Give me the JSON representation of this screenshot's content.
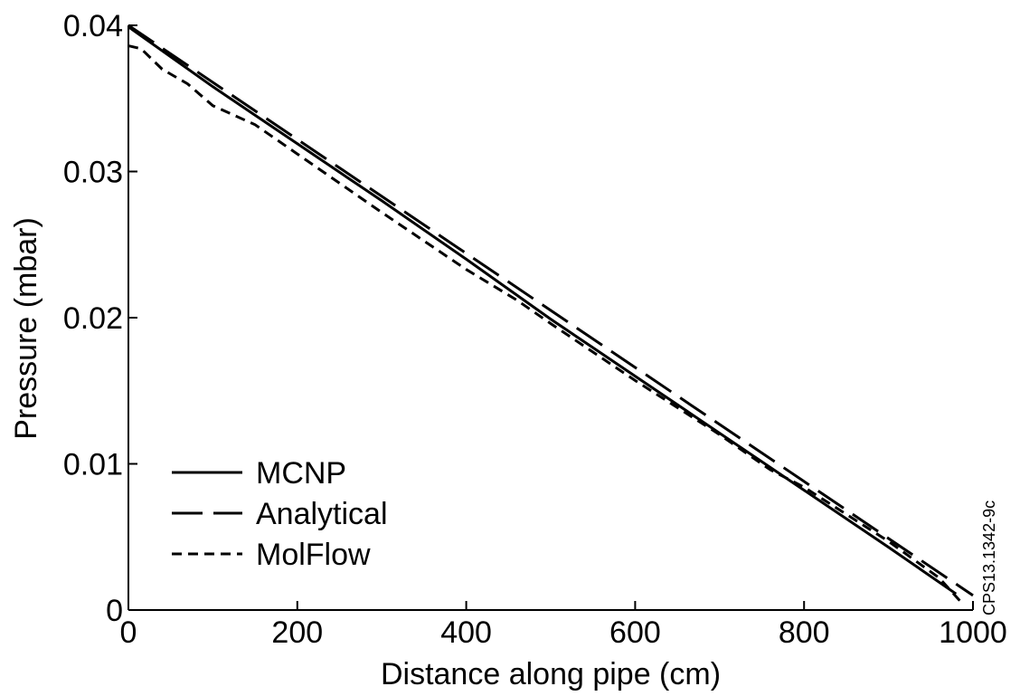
{
  "chart_data": {
    "type": "line",
    "xlabel": "Distance along pipe (cm)",
    "ylabel": "Pressure (mbar)",
    "xlim": [
      0,
      1000
    ],
    "ylim": [
      0,
      0.04
    ],
    "x_ticks": [
      0,
      200,
      400,
      600,
      800,
      1000
    ],
    "x_tick_labels": [
      "0",
      "200",
      "400",
      "600",
      "800",
      "1000"
    ],
    "y_ticks": [
      0,
      0.01,
      0.02,
      0.03,
      0.04
    ],
    "y_tick_labels": [
      "0",
      "0.01",
      "0.02",
      "0.03",
      "0.04"
    ],
    "grid": false,
    "legend_position": "bottom-left",
    "series": [
      {
        "name": "MCNP",
        "dash": "solid",
        "color": "#000000",
        "points": [
          [
            0,
            0.0399
          ],
          [
            100,
            0.0358
          ],
          [
            200,
            0.0319
          ],
          [
            300,
            0.028
          ],
          [
            400,
            0.024
          ],
          [
            500,
            0.0199
          ],
          [
            600,
            0.016
          ],
          [
            700,
            0.0121
          ],
          [
            800,
            0.0082
          ],
          [
            900,
            0.0043
          ],
          [
            980,
            0.0011
          ]
        ]
      },
      {
        "name": "Analytical",
        "dash": "long-dash",
        "color": "#000000",
        "points": [
          [
            0,
            0.04
          ],
          [
            1000,
            0.001
          ]
        ]
      },
      {
        "name": "MolFlow",
        "dash": "short-dash",
        "color": "#000000",
        "points": [
          [
            0,
            0.0386
          ],
          [
            15,
            0.0384
          ],
          [
            40,
            0.037
          ],
          [
            70,
            0.036
          ],
          [
            100,
            0.0345
          ],
          [
            150,
            0.0332
          ],
          [
            200,
            0.0312
          ],
          [
            300,
            0.0272
          ],
          [
            400,
            0.0233
          ],
          [
            460,
            0.0212
          ],
          [
            500,
            0.0196
          ],
          [
            600,
            0.0157
          ],
          [
            700,
            0.012
          ],
          [
            760,
            0.0096
          ],
          [
            800,
            0.0084
          ],
          [
            900,
            0.0047
          ],
          [
            960,
            0.0022
          ],
          [
            985,
            0.0006
          ]
        ]
      }
    ]
  },
  "side_code": "CPS13.1342-9c"
}
